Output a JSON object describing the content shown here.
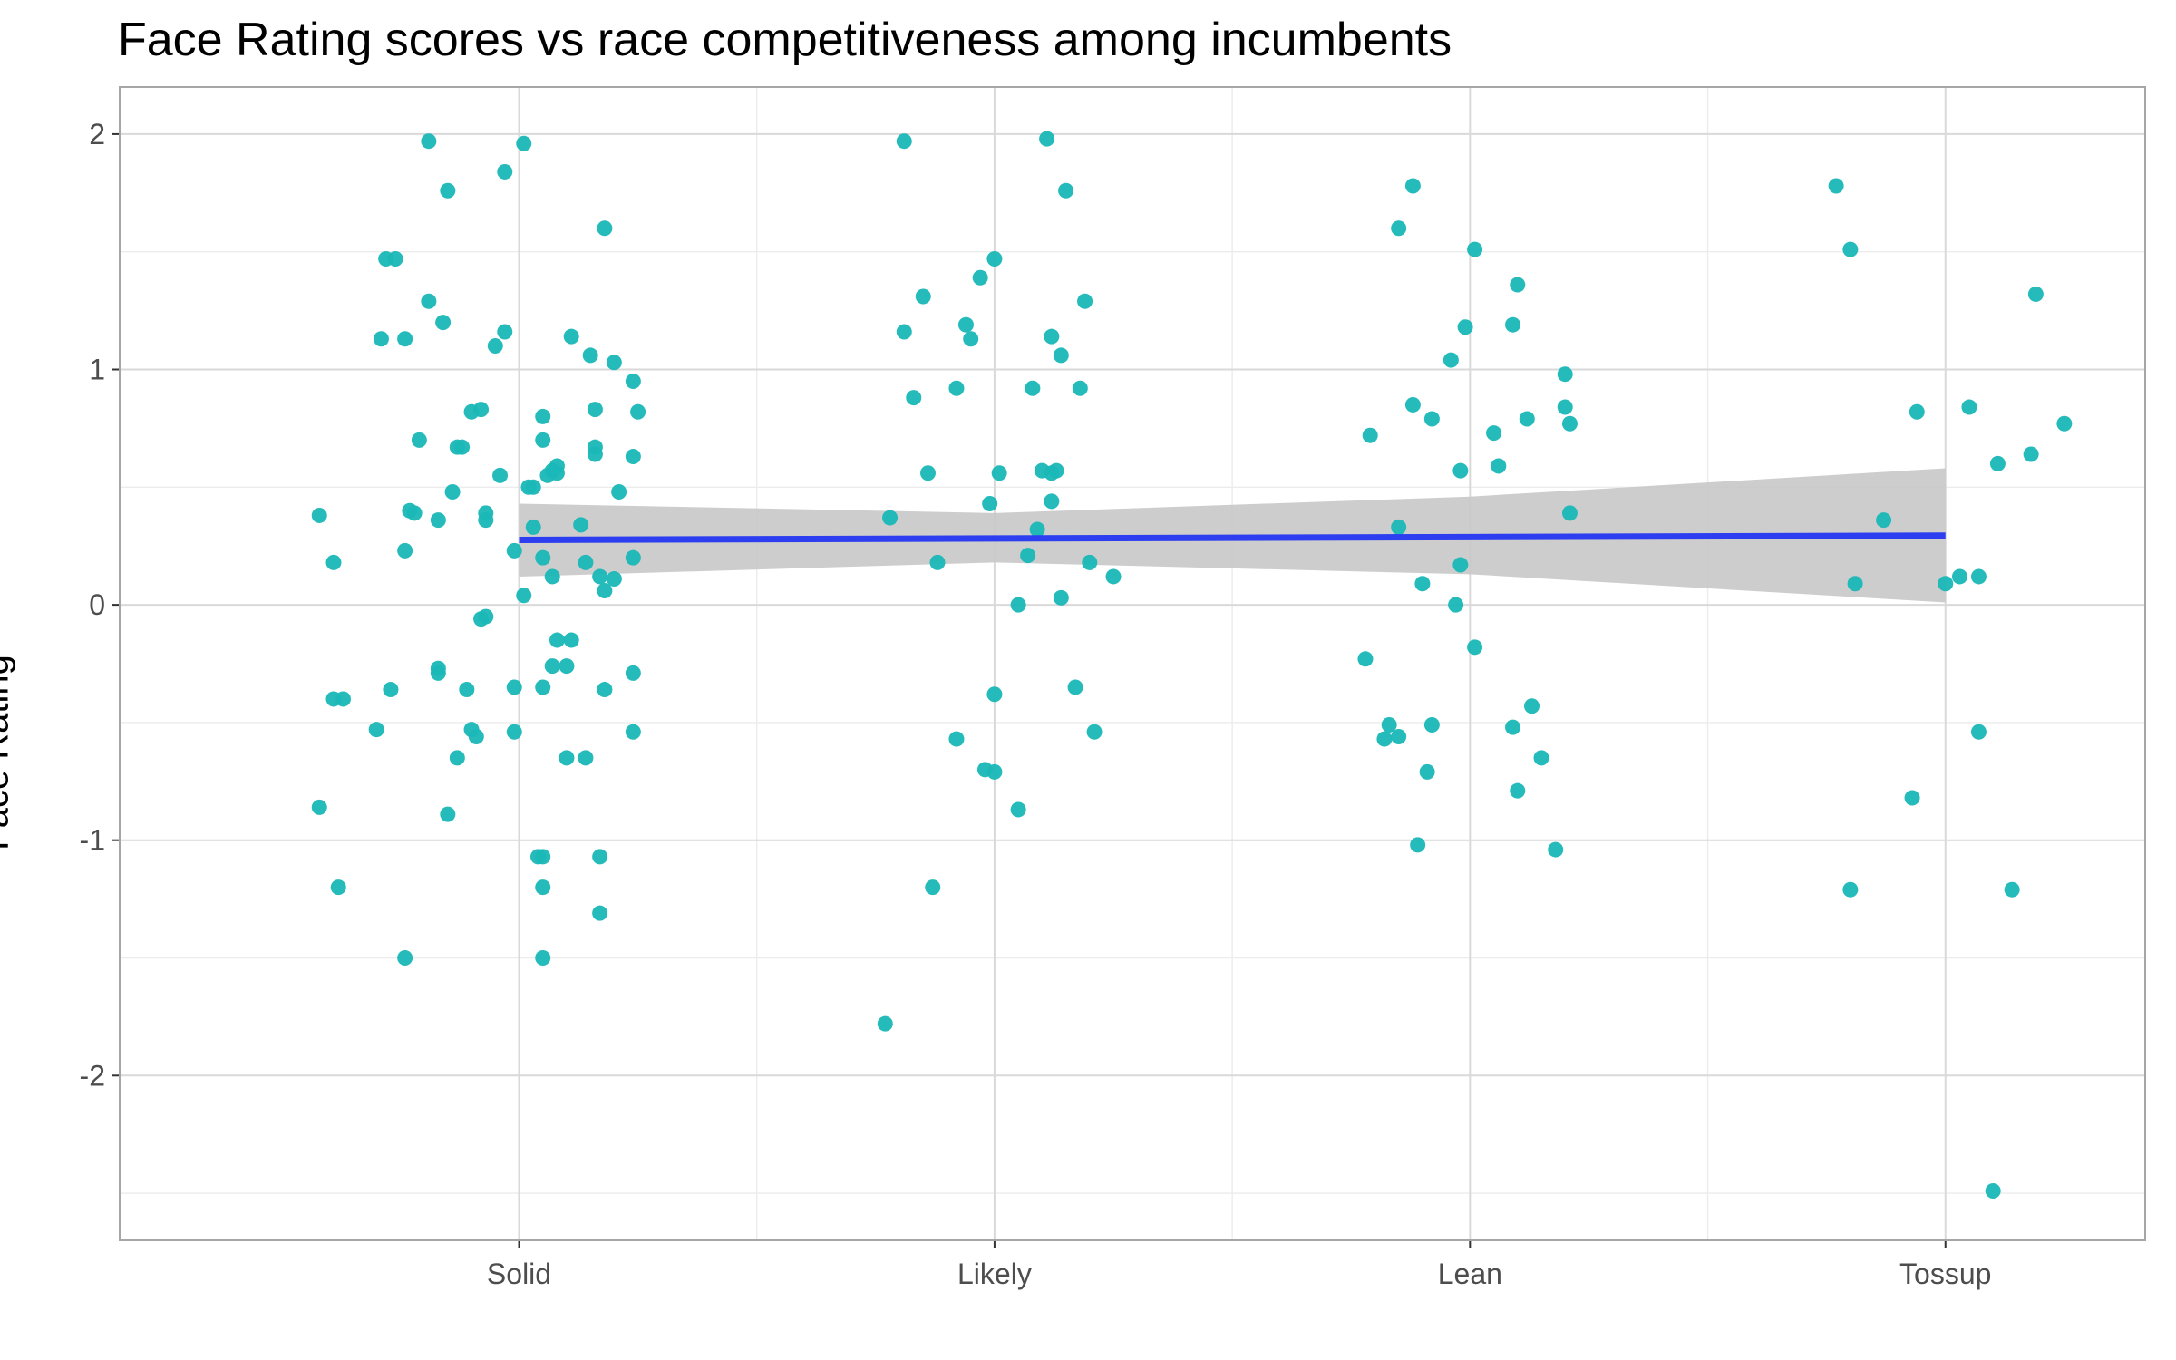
{
  "chart_data": {
    "type": "scatter",
    "title": "Face Rating scores vs race competitiveness among incumbents",
    "xlabel": "",
    "ylabel": "Face Rating",
    "categories": [
      "Solid",
      "Likely",
      "Lean",
      "Tossup"
    ],
    "y_ticks": [
      "2",
      "1",
      "0",
      "-1",
      "-2"
    ],
    "ylim": [
      -2.7,
      2.2
    ],
    "grid": true,
    "colors": {
      "points": "#1ab7b7",
      "trend": "#2c3ef0",
      "band": "#c8c8c8",
      "grid_major": "#d9d9d9",
      "grid_minor": "#ececec",
      "border": "#a6a6a6"
    },
    "points": [
      {
        "x": 0.58,
        "y": 0.38
      },
      {
        "x": 0.58,
        "y": -0.86
      },
      {
        "x": 0.61,
        "y": 0.18
      },
      {
        "x": 0.62,
        "y": -1.2
      },
      {
        "x": 0.61,
        "y": -0.4
      },
      {
        "x": 0.63,
        "y": -0.4
      },
      {
        "x": 0.7,
        "y": -0.53
      },
      {
        "x": 0.71,
        "y": 1.13
      },
      {
        "x": 0.72,
        "y": 1.47
      },
      {
        "x": 0.73,
        "y": -0.36
      },
      {
        "x": 0.74,
        "y": 1.47
      },
      {
        "x": 0.76,
        "y": 1.13
      },
      {
        "x": 0.76,
        "y": 0.23
      },
      {
        "x": 0.76,
        "y": -1.5
      },
      {
        "x": 0.77,
        "y": 0.4
      },
      {
        "x": 0.78,
        "y": 0.39
      },
      {
        "x": 0.79,
        "y": 0.7
      },
      {
        "x": 0.81,
        "y": 1.97
      },
      {
        "x": 0.81,
        "y": 1.29
      },
      {
        "x": 0.83,
        "y": 0.36
      },
      {
        "x": 0.83,
        "y": -0.29
      },
      {
        "x": 0.83,
        "y": -0.27
      },
      {
        "x": 0.84,
        "y": 1.2
      },
      {
        "x": 0.85,
        "y": 1.76
      },
      {
        "x": 0.86,
        "y": 0.48
      },
      {
        "x": 0.85,
        "y": -0.89
      },
      {
        "x": 0.87,
        "y": 0.67
      },
      {
        "x": 0.87,
        "y": -0.65
      },
      {
        "x": 0.88,
        "y": 0.67
      },
      {
        "x": 0.89,
        "y": -0.36
      },
      {
        "x": 0.9,
        "y": 0.82
      },
      {
        "x": 0.9,
        "y": -0.53
      },
      {
        "x": 0.91,
        "y": -0.56
      },
      {
        "x": 0.92,
        "y": 0.83
      },
      {
        "x": 0.93,
        "y": 0.39
      },
      {
        "x": 0.93,
        "y": 0.36
      },
      {
        "x": 0.92,
        "y": -0.06
      },
      {
        "x": 0.93,
        "y": -0.05
      },
      {
        "x": 0.95,
        "y": 1.1
      },
      {
        "x": 0.96,
        "y": 0.55
      },
      {
        "x": 0.97,
        "y": 1.16
      },
      {
        "x": 0.97,
        "y": 1.84
      },
      {
        "x": 0.99,
        "y": 0.23
      },
      {
        "x": 0.99,
        "y": -0.35
      },
      {
        "x": 0.99,
        "y": -0.54
      },
      {
        "x": 1.01,
        "y": 0.04
      },
      {
        "x": 1.01,
        "y": 1.96
      },
      {
        "x": 1.02,
        "y": 0.5
      },
      {
        "x": 1.03,
        "y": 0.33
      },
      {
        "x": 1.03,
        "y": 0.5
      },
      {
        "x": 1.04,
        "y": -1.07
      },
      {
        "x": 1.05,
        "y": -1.2
      },
      {
        "x": 1.05,
        "y": -1.5
      },
      {
        "x": 1.05,
        "y": -1.07
      },
      {
        "x": 1.05,
        "y": 0.7
      },
      {
        "x": 1.05,
        "y": 0.8
      },
      {
        "x": 1.05,
        "y": 0.2
      },
      {
        "x": 1.05,
        "y": -0.35
      },
      {
        "x": 1.06,
        "y": 0.55
      },
      {
        "x": 1.07,
        "y": 0.57
      },
      {
        "x": 1.07,
        "y": 0.12
      },
      {
        "x": 1.07,
        "y": -0.26
      },
      {
        "x": 1.08,
        "y": 0.59
      },
      {
        "x": 1.08,
        "y": 0.56
      },
      {
        "x": 1.08,
        "y": -0.15
      },
      {
        "x": 1.1,
        "y": -0.65
      },
      {
        "x": 1.1,
        "y": -0.26
      },
      {
        "x": 1.11,
        "y": -0.15
      },
      {
        "x": 1.11,
        "y": 1.14
      },
      {
        "x": 1.13,
        "y": 0.34
      },
      {
        "x": 1.14,
        "y": 0.18
      },
      {
        "x": 1.14,
        "y": -0.65
      },
      {
        "x": 1.15,
        "y": 1.06
      },
      {
        "x": 1.16,
        "y": 0.83
      },
      {
        "x": 1.16,
        "y": 0.67
      },
      {
        "x": 1.16,
        "y": 0.64
      },
      {
        "x": 1.17,
        "y": 0.12
      },
      {
        "x": 1.17,
        "y": -1.07
      },
      {
        "x": 1.17,
        "y": -1.31
      },
      {
        "x": 1.18,
        "y": 0.06
      },
      {
        "x": 1.18,
        "y": 1.6
      },
      {
        "x": 1.18,
        "y": -0.36
      },
      {
        "x": 1.2,
        "y": 0.11
      },
      {
        "x": 1.2,
        "y": 1.03
      },
      {
        "x": 1.21,
        "y": 0.48
      },
      {
        "x": 1.24,
        "y": 0.95
      },
      {
        "x": 1.24,
        "y": 0.63
      },
      {
        "x": 1.24,
        "y": 0.2
      },
      {
        "x": 1.24,
        "y": -0.29
      },
      {
        "x": 1.24,
        "y": -0.54
      },
      {
        "x": 1.25,
        "y": 0.82
      },
      {
        "x": 1.77,
        "y": -1.78
      },
      {
        "x": 1.78,
        "y": 0.37
      },
      {
        "x": 1.81,
        "y": 1.97
      },
      {
        "x": 1.81,
        "y": 1.16
      },
      {
        "x": 1.83,
        "y": 0.88
      },
      {
        "x": 1.85,
        "y": 1.31
      },
      {
        "x": 1.86,
        "y": 0.56
      },
      {
        "x": 1.87,
        "y": -1.2
      },
      {
        "x": 1.88,
        "y": 0.18
      },
      {
        "x": 1.92,
        "y": 0.92
      },
      {
        "x": 1.92,
        "y": -0.57
      },
      {
        "x": 1.94,
        "y": 1.19
      },
      {
        "x": 1.95,
        "y": 1.13
      },
      {
        "x": 1.97,
        "y": 1.39
      },
      {
        "x": 1.98,
        "y": -0.7
      },
      {
        "x": 1.99,
        "y": 0.43
      },
      {
        "x": 2.0,
        "y": -0.71
      },
      {
        "x": 2.0,
        "y": 1.47
      },
      {
        "x": 2.0,
        "y": -0.38
      },
      {
        "x": 2.01,
        "y": 0.56
      },
      {
        "x": 2.05,
        "y": 0.0
      },
      {
        "x": 2.05,
        "y": -0.87
      },
      {
        "x": 2.07,
        "y": 0.21
      },
      {
        "x": 2.08,
        "y": 0.92
      },
      {
        "x": 2.09,
        "y": 0.32
      },
      {
        "x": 2.1,
        "y": 0.57
      },
      {
        "x": 2.11,
        "y": 1.98
      },
      {
        "x": 2.12,
        "y": 1.14
      },
      {
        "x": 2.12,
        "y": 0.56
      },
      {
        "x": 2.12,
        "y": 0.44
      },
      {
        "x": 2.13,
        "y": 0.57
      },
      {
        "x": 2.14,
        "y": 1.06
      },
      {
        "x": 2.14,
        "y": 0.03
      },
      {
        "x": 2.15,
        "y": 1.76
      },
      {
        "x": 2.17,
        "y": -0.35
      },
      {
        "x": 2.18,
        "y": 0.92
      },
      {
        "x": 2.19,
        "y": 1.29
      },
      {
        "x": 2.2,
        "y": 0.18
      },
      {
        "x": 2.21,
        "y": -0.54
      },
      {
        "x": 2.25,
        "y": 0.12
      },
      {
        "x": 2.78,
        "y": -0.23
      },
      {
        "x": 2.79,
        "y": 0.72
      },
      {
        "x": 2.82,
        "y": -0.57
      },
      {
        "x": 2.83,
        "y": -0.51
      },
      {
        "x": 2.85,
        "y": -0.56
      },
      {
        "x": 2.85,
        "y": 1.6
      },
      {
        "x": 2.85,
        "y": 0.33
      },
      {
        "x": 2.88,
        "y": 1.78
      },
      {
        "x": 2.88,
        "y": 0.85
      },
      {
        "x": 2.89,
        "y": -1.02
      },
      {
        "x": 2.9,
        "y": 0.09
      },
      {
        "x": 2.91,
        "y": -0.71
      },
      {
        "x": 2.92,
        "y": -0.51
      },
      {
        "x": 2.92,
        "y": 0.79
      },
      {
        "x": 2.96,
        "y": 1.04
      },
      {
        "x": 2.97,
        "y": 0.0
      },
      {
        "x": 2.98,
        "y": 0.57
      },
      {
        "x": 2.98,
        "y": 0.17
      },
      {
        "x": 2.99,
        "y": 1.18
      },
      {
        "x": 3.01,
        "y": 1.51
      },
      {
        "x": 3.01,
        "y": -0.18
      },
      {
        "x": 3.05,
        "y": 0.73
      },
      {
        "x": 3.06,
        "y": 0.59
      },
      {
        "x": 3.09,
        "y": 1.19
      },
      {
        "x": 3.09,
        "y": -0.52
      },
      {
        "x": 3.1,
        "y": 1.36
      },
      {
        "x": 3.1,
        "y": -0.79
      },
      {
        "x": 3.12,
        "y": 0.79
      },
      {
        "x": 3.13,
        "y": -0.43
      },
      {
        "x": 3.15,
        "y": -0.65
      },
      {
        "x": 3.18,
        "y": -1.04
      },
      {
        "x": 3.2,
        "y": 0.98
      },
      {
        "x": 3.2,
        "y": 0.84
      },
      {
        "x": 3.21,
        "y": 0.77
      },
      {
        "x": 3.21,
        "y": 0.39
      },
      {
        "x": 3.77,
        "y": 1.78
      },
      {
        "x": 3.8,
        "y": 1.51
      },
      {
        "x": 3.8,
        "y": -1.21
      },
      {
        "x": 3.81,
        "y": 0.09
      },
      {
        "x": 3.87,
        "y": 0.36
      },
      {
        "x": 3.93,
        "y": -0.82
      },
      {
        "x": 3.94,
        "y": 0.82
      },
      {
        "x": 4.0,
        "y": 0.09
      },
      {
        "x": 4.03,
        "y": 0.12
      },
      {
        "x": 4.05,
        "y": 0.84
      },
      {
        "x": 4.07,
        "y": -0.54
      },
      {
        "x": 4.07,
        "y": 0.12
      },
      {
        "x": 4.1,
        "y": -2.49
      },
      {
        "x": 4.11,
        "y": 0.6
      },
      {
        "x": 4.14,
        "y": -1.21
      },
      {
        "x": 4.18,
        "y": 0.64
      },
      {
        "x": 4.19,
        "y": 1.32
      },
      {
        "x": 4.25,
        "y": 0.77
      }
    ],
    "trend_line": {
      "x": [
        1,
        2,
        3,
        4
      ],
      "fit": [
        0.276,
        0.282,
        0.288,
        0.294
      ],
      "lower": [
        0.12,
        0.18,
        0.13,
        0.01
      ],
      "upper": [
        0.43,
        0.39,
        0.46,
        0.58
      ]
    }
  }
}
